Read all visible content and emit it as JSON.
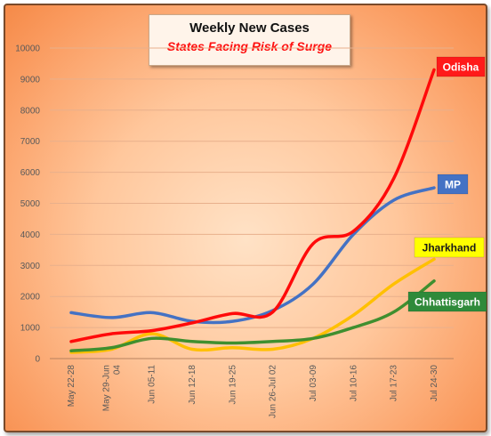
{
  "chart_data": {
    "type": "line",
    "title": "Weekly New Cases",
    "subtitle": "States Facing Risk of Surge",
    "xlabel": "",
    "ylabel": "",
    "ylim": [
      0,
      10000
    ],
    "yticks": [
      0,
      1000,
      2000,
      3000,
      4000,
      5000,
      6000,
      7000,
      8000,
      9000,
      10000
    ],
    "grid": true,
    "categories": [
      [
        "May 22-28"
      ],
      [
        "May 29-Jun",
        "04"
      ],
      [
        "Jun 05-11"
      ],
      [
        "Jun 12-18"
      ],
      [
        "Jun 19-25"
      ],
      [
        "Jun 26-Jul 02"
      ],
      [
        "Jul 03-09"
      ],
      [
        "Jul 10-16"
      ],
      [
        "Jul 17-23"
      ],
      [
        "Jul 24-30"
      ]
    ],
    "series": [
      {
        "name": "Odisha",
        "color": "#ff0a0a",
        "label_bg": "#ff1a1a",
        "label_fg": "#ffffff",
        "values": [
          550,
          800,
          900,
          1150,
          1450,
          1500,
          3700,
          4100,
          5800,
          9300
        ]
      },
      {
        "name": "MP",
        "color": "#4472c4",
        "label_bg": "#4472c4",
        "label_fg": "#ffffff",
        "values": [
          1480,
          1320,
          1480,
          1200,
          1200,
          1550,
          2400,
          4000,
          5100,
          5500
        ]
      },
      {
        "name": "Jharkhand",
        "color": "#ffc000",
        "label_bg": "#ffff00",
        "label_fg": "#1a1a1a",
        "values": [
          200,
          300,
          800,
          300,
          350,
          300,
          650,
          1400,
          2400,
          3200
        ]
      },
      {
        "name": "Chhattisgarh",
        "color": "#3f8f2f",
        "label_bg": "#2f8a3a",
        "label_fg": "#ffffff",
        "values": [
          250,
          350,
          650,
          550,
          500,
          550,
          650,
          1000,
          1500,
          2500
        ]
      }
    ]
  }
}
